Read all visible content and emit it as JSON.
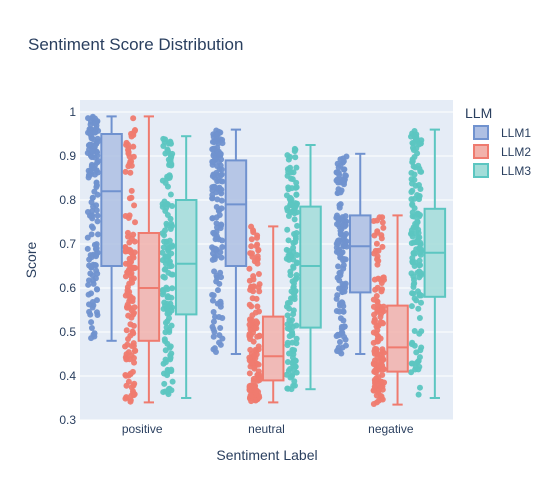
{
  "chart_data": {
    "type": "box",
    "title": "Sentiment Score Distribution",
    "xlabel": "Sentiment Label",
    "ylabel": "Score",
    "ylim": [
      0.3,
      1.0
    ],
    "yticks": [
      0.3,
      0.4,
      0.5,
      0.6,
      0.7,
      0.8,
      0.9,
      1
    ],
    "ytick_labels": [
      "0.3",
      "0.4",
      "0.5",
      "0.6",
      "0.7",
      "0.8",
      "0.9",
      "1"
    ],
    "categories": [
      "positive",
      "neutral",
      "negative"
    ],
    "legend_title": "LLM",
    "legend_position": "right",
    "grid": true,
    "boxpoints": "all",
    "series": [
      {
        "name": "LLM1",
        "color": "#7092cf",
        "fill": "#aebfe3",
        "boxes": [
          {
            "min": 0.48,
            "q1": 0.65,
            "median": 0.82,
            "q3": 0.95,
            "max": 0.99
          },
          {
            "min": 0.45,
            "q1": 0.65,
            "median": 0.79,
            "q3": 0.89,
            "max": 0.96
          },
          {
            "min": 0.45,
            "q1": 0.59,
            "median": 0.695,
            "q3": 0.765,
            "max": 0.905
          }
        ]
      },
      {
        "name": "LLM2",
        "color": "#ef7b6f",
        "fill": "#f2b2ab",
        "boxes": [
          {
            "min": 0.34,
            "q1": 0.48,
            "median": 0.6,
            "q3": 0.725,
            "max": 0.99
          },
          {
            "min": 0.34,
            "q1": 0.39,
            "median": 0.445,
            "q3": 0.535,
            "max": 0.74
          },
          {
            "min": 0.335,
            "q1": 0.41,
            "median": 0.465,
            "q3": 0.56,
            "max": 0.765
          }
        ]
      },
      {
        "name": "LLM3",
        "color": "#5cc6c1",
        "fill": "#a3ddd9",
        "boxes": [
          {
            "min": 0.35,
            "q1": 0.54,
            "median": 0.655,
            "q3": 0.8,
            "max": 0.945
          },
          {
            "min": 0.37,
            "q1": 0.51,
            "median": 0.65,
            "q3": 0.785,
            "max": 0.925
          },
          {
            "min": 0.35,
            "q1": 0.58,
            "median": 0.68,
            "q3": 0.78,
            "max": 0.96
          }
        ]
      }
    ]
  },
  "colors": {
    "plot_background": "#e5ecf6",
    "grid": "#ffffff",
    "text": "#2a3f5f"
  }
}
